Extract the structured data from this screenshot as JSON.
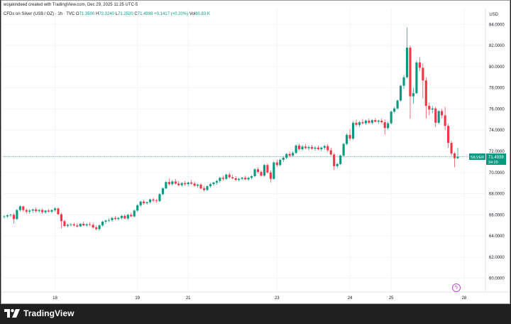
{
  "header": {
    "creator_line": "wojakindeed created with TradingView.com, Dec 29, 2025 11:25 UTC-5",
    "symbol_desc": "CFDs on Silver (US$ / OZ) · 1h · TVC",
    "o_label": "O",
    "o_value": "71.3500",
    "h_label": "H",
    "h_value": "72.3240",
    "l_label": "L",
    "l_value": "71.2520",
    "c_label": "C",
    "c_value": "71.4939",
    "change": "+0.1417 (+0.20%)",
    "vol_label": "Vol",
    "vol_value": "80.83 K",
    "currency": "USD"
  },
  "price_label": {
    "symbol": "SILVER",
    "price": "71.4939",
    "countdown": "34:20"
  },
  "brand": {
    "name": "TradingView"
  },
  "colors": {
    "up": "#089981",
    "down": "#f23645",
    "last_price": "#089981",
    "grid": "#f0f3fa"
  },
  "chart_data": {
    "type": "candlestick",
    "title": "CFDs on Silver (US$ / OZ) · 1h · TVC",
    "ylabel": "USD",
    "ylim": [
      58.7,
      85.5
    ],
    "y_ticks": [
      60,
      62,
      64,
      66,
      68,
      70,
      72,
      74,
      76,
      78,
      80,
      82,
      84
    ],
    "y_tick_labels": [
      "60.0000",
      "62.0000",
      "64.0000",
      "66.0000",
      "68.0000",
      "70.0000",
      "72.0000",
      "74.0000",
      "76.0000",
      "78.0000",
      "80.0000",
      "82.0000",
      "84.0000"
    ],
    "x_tick_labels": [
      {
        "label": "18",
        "index": 16
      },
      {
        "label": "19",
        "index": 42
      },
      {
        "label": "21",
        "index": 58
      },
      {
        "label": "23",
        "index": 86
      },
      {
        "label": "24",
        "index": 109
      },
      {
        "label": "25",
        "index": 122
      },
      {
        "label": "28",
        "index": 145
      }
    ],
    "last_price": 71.4939,
    "candles": [
      [
        65.8,
        65.95,
        65.65,
        65.85
      ],
      [
        65.85,
        66.05,
        65.7,
        65.95
      ],
      [
        65.95,
        66.1,
        65.8,
        66.0
      ],
      [
        66.0,
        66.15,
        65.15,
        65.6
      ],
      [
        65.6,
        66.55,
        65.5,
        66.45
      ],
      [
        66.45,
        66.9,
        66.3,
        66.8
      ],
      [
        66.8,
        66.85,
        66.3,
        66.45
      ],
      [
        66.45,
        66.6,
        66.1,
        66.3
      ],
      [
        66.3,
        66.55,
        66.1,
        66.4
      ],
      [
        66.4,
        66.6,
        66.2,
        66.5
      ],
      [
        66.5,
        66.7,
        66.2,
        66.35
      ],
      [
        66.35,
        66.55,
        66.2,
        66.45
      ],
      [
        66.45,
        66.6,
        66.1,
        66.25
      ],
      [
        66.25,
        66.45,
        66.1,
        66.4
      ],
      [
        66.4,
        66.55,
        66.2,
        66.3
      ],
      [
        66.3,
        66.5,
        66.15,
        66.45
      ],
      [
        66.45,
        66.7,
        66.3,
        66.6
      ],
      [
        66.6,
        66.7,
        66.0,
        66.05
      ],
      [
        66.05,
        66.2,
        64.7,
        65.4
      ],
      [
        65.4,
        65.55,
        64.85,
        64.95
      ],
      [
        64.95,
        65.15,
        64.8,
        65.05
      ],
      [
        65.05,
        65.2,
        64.9,
        65.1
      ],
      [
        65.1,
        65.25,
        64.9,
        65.0
      ],
      [
        65.0,
        65.2,
        64.8,
        64.9
      ],
      [
        64.9,
        65.2,
        64.85,
        65.15
      ],
      [
        65.15,
        65.35,
        64.95,
        65.0
      ],
      [
        65.0,
        65.2,
        64.85,
        65.1
      ],
      [
        65.1,
        65.3,
        64.95,
        65.05
      ],
      [
        65.05,
        65.25,
        64.7,
        64.8
      ],
      [
        64.8,
        65.0,
        64.55,
        64.65
      ],
      [
        64.65,
        65.1,
        64.5,
        65.0
      ],
      [
        65.0,
        65.45,
        64.9,
        65.35
      ],
      [
        65.35,
        65.55,
        65.15,
        65.45
      ],
      [
        65.45,
        65.65,
        65.3,
        65.5
      ],
      [
        65.5,
        65.8,
        65.35,
        65.7
      ],
      [
        65.7,
        65.9,
        65.5,
        65.6
      ],
      [
        65.6,
        65.8,
        65.45,
        65.7
      ],
      [
        65.7,
        66.0,
        65.55,
        65.9
      ],
      [
        65.9,
        66.05,
        65.6,
        65.65
      ],
      [
        65.65,
        66.1,
        65.5,
        66.0
      ],
      [
        66.0,
        66.2,
        65.8,
        65.85
      ],
      [
        65.85,
        66.5,
        65.75,
        66.4
      ],
      [
        66.4,
        67.0,
        66.3,
        66.9
      ],
      [
        66.9,
        67.35,
        66.75,
        67.25
      ],
      [
        67.25,
        67.4,
        66.95,
        67.1
      ],
      [
        67.1,
        67.25,
        66.95,
        67.2
      ],
      [
        67.2,
        67.55,
        67.05,
        67.45
      ],
      [
        67.45,
        67.6,
        67.2,
        67.35
      ],
      [
        67.35,
        67.5,
        67.15,
        67.3
      ],
      [
        67.3,
        68.05,
        67.2,
        67.95
      ],
      [
        67.95,
        68.6,
        67.85,
        68.5
      ],
      [
        68.5,
        69.2,
        68.4,
        69.1
      ],
      [
        69.1,
        69.45,
        68.75,
        68.9
      ],
      [
        68.9,
        69.3,
        68.75,
        69.15
      ],
      [
        69.15,
        69.4,
        68.85,
        68.95
      ],
      [
        68.95,
        69.2,
        68.7,
        68.8
      ],
      [
        68.8,
        69.1,
        68.65,
        69.0
      ],
      [
        69.0,
        69.2,
        68.75,
        68.9
      ],
      [
        68.9,
        69.15,
        68.7,
        69.05
      ],
      [
        69.05,
        69.3,
        68.85,
        68.95
      ],
      [
        68.95,
        69.15,
        68.65,
        68.75
      ],
      [
        68.75,
        68.95,
        68.55,
        68.85
      ],
      [
        68.85,
        69.0,
        68.4,
        68.5
      ],
      [
        68.5,
        68.7,
        68.2,
        68.35
      ],
      [
        68.35,
        68.8,
        68.25,
        68.7
      ],
      [
        68.7,
        69.0,
        68.55,
        68.9
      ],
      [
        68.9,
        69.15,
        68.75,
        69.05
      ],
      [
        69.05,
        69.3,
        68.85,
        69.2
      ],
      [
        69.2,
        69.6,
        69.05,
        69.5
      ],
      [
        69.5,
        69.7,
        69.25,
        69.4
      ],
      [
        69.4,
        69.9,
        69.3,
        69.8
      ],
      [
        69.8,
        70.0,
        69.45,
        69.55
      ],
      [
        69.55,
        69.8,
        69.35,
        69.45
      ],
      [
        69.45,
        69.65,
        69.2,
        69.3
      ],
      [
        69.3,
        69.5,
        69.15,
        69.4
      ],
      [
        69.4,
        69.6,
        69.25,
        69.5
      ],
      [
        69.5,
        69.7,
        69.3,
        69.35
      ],
      [
        69.35,
        69.6,
        69.2,
        69.5
      ],
      [
        69.5,
        69.75,
        69.35,
        69.65
      ],
      [
        69.65,
        70.4,
        69.55,
        70.3
      ],
      [
        70.3,
        70.5,
        69.9,
        70.05
      ],
      [
        70.05,
        70.2,
        69.6,
        69.7
      ],
      [
        69.7,
        70.8,
        69.6,
        70.7
      ],
      [
        70.7,
        70.85,
        69.9,
        70.0
      ],
      [
        70.0,
        70.2,
        69.05,
        69.4
      ],
      [
        69.4,
        71.05,
        69.3,
        70.95
      ],
      [
        70.95,
        71.2,
        70.55,
        70.7
      ],
      [
        70.7,
        71.3,
        70.6,
        71.2
      ],
      [
        71.2,
        71.55,
        71.0,
        71.4
      ],
      [
        71.4,
        71.85,
        71.25,
        71.75
      ],
      [
        71.75,
        71.95,
        71.45,
        71.6
      ],
      [
        71.6,
        72.0,
        71.5,
        71.85
      ],
      [
        71.85,
        72.65,
        71.75,
        72.55
      ],
      [
        72.55,
        72.75,
        72.05,
        72.2
      ],
      [
        72.2,
        72.6,
        72.05,
        72.45
      ],
      [
        72.45,
        72.7,
        72.2,
        72.3
      ],
      [
        72.3,
        72.55,
        72.1,
        72.4
      ],
      [
        72.4,
        72.6,
        72.15,
        72.25
      ],
      [
        72.25,
        72.5,
        72.05,
        72.35
      ],
      [
        72.35,
        72.55,
        72.1,
        72.2
      ],
      [
        72.2,
        72.45,
        72.0,
        72.35
      ],
      [
        72.35,
        72.6,
        72.15,
        72.5
      ],
      [
        72.5,
        72.7,
        71.95,
        72.1
      ],
      [
        72.1,
        72.35,
        71.6,
        71.7
      ],
      [
        71.7,
        71.85,
        70.25,
        70.6
      ],
      [
        70.6,
        70.9,
        70.4,
        70.8
      ],
      [
        70.8,
        71.7,
        70.7,
        71.6
      ],
      [
        71.6,
        72.8,
        71.5,
        72.7
      ],
      [
        72.7,
        73.7,
        72.6,
        73.55
      ],
      [
        73.55,
        74.1,
        73.0,
        73.2
      ],
      [
        73.2,
        74.85,
        73.1,
        74.7
      ],
      [
        74.7,
        75.0,
        74.35,
        74.5
      ],
      [
        74.5,
        74.85,
        74.3,
        74.75
      ],
      [
        74.75,
        75.05,
        74.55,
        74.65
      ],
      [
        74.65,
        75.0,
        74.5,
        74.9
      ],
      [
        74.9,
        75.1,
        74.6,
        74.7
      ],
      [
        74.7,
        75.05,
        74.55,
        74.95
      ],
      [
        74.95,
        75.15,
        74.75,
        74.8
      ],
      [
        74.8,
        75.0,
        74.6,
        74.9
      ],
      [
        74.9,
        75.1,
        74.65,
        74.75
      ],
      [
        74.75,
        75.0,
        73.6,
        74.2
      ],
      [
        74.2,
        74.8,
        74.05,
        74.65
      ],
      [
        74.65,
        75.85,
        74.55,
        75.75
      ],
      [
        75.75,
        76.2,
        75.6,
        76.05
      ],
      [
        76.05,
        76.9,
        75.95,
        76.8
      ],
      [
        76.8,
        78.3,
        76.7,
        78.2
      ],
      [
        78.2,
        79.2,
        77.9,
        79.0
      ],
      [
        79.0,
        83.7,
        78.9,
        81.8
      ],
      [
        81.8,
        82.0,
        75.1,
        77.2
      ],
      [
        77.2,
        78.0,
        76.5,
        77.5
      ],
      [
        77.5,
        80.6,
        77.4,
        80.4
      ],
      [
        80.4,
        80.9,
        79.6,
        79.9
      ],
      [
        79.9,
        80.3,
        77.0,
        78.7
      ],
      [
        78.7,
        79.0,
        75.1,
        76.3
      ],
      [
        76.3,
        76.6,
        75.4,
        75.95
      ],
      [
        75.95,
        76.3,
        75.6,
        76.05
      ],
      [
        76.05,
        76.2,
        74.3,
        74.7
      ],
      [
        74.7,
        75.9,
        74.55,
        75.8
      ],
      [
        75.8,
        76.0,
        75.1,
        75.4
      ],
      [
        75.4,
        76.2,
        74.0,
        74.4
      ],
      [
        74.4,
        74.6,
        72.3,
        72.8
      ],
      [
        72.8,
        73.0,
        71.6,
        71.8
      ],
      [
        71.8,
        71.95,
        70.5,
        71.35
      ],
      [
        71.35,
        72.32,
        71.25,
        71.49
      ]
    ]
  }
}
